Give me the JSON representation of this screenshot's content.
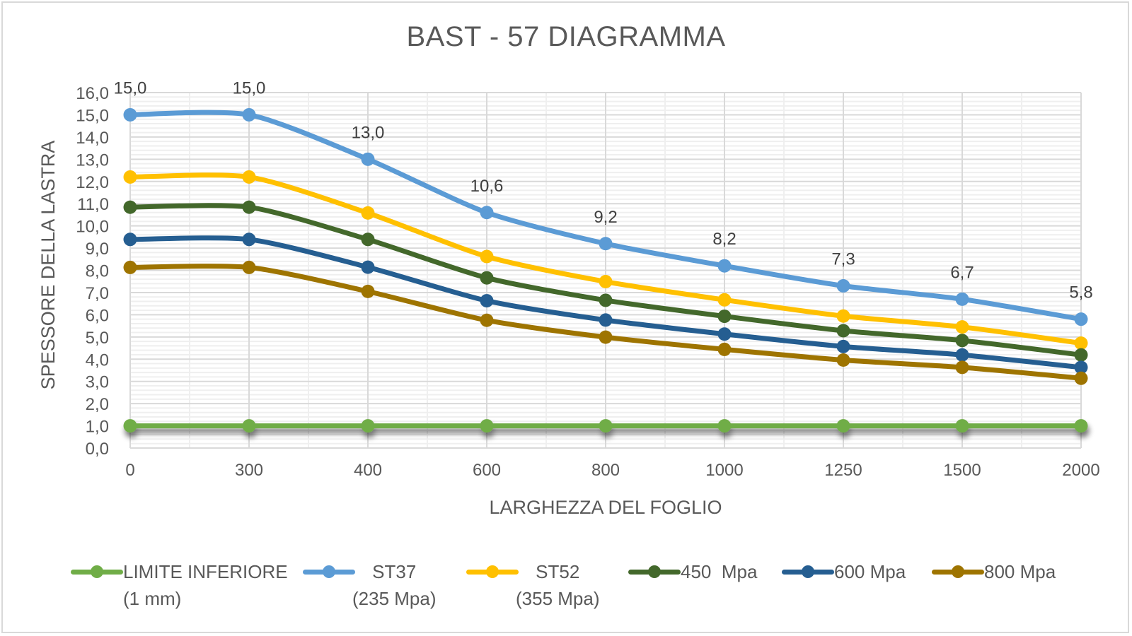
{
  "chart_data": {
    "type": "line",
    "title": "BAST - 57 DIAGRAMMA",
    "xlabel": "LARGHEZZA DEL FOGLIO",
    "ylabel": "SPESSORE DELLA LASTRA",
    "categories": [
      "0",
      "300",
      "400",
      "600",
      "800",
      "1000",
      "1250",
      "1500",
      "2000"
    ],
    "ylim": [
      0,
      16
    ],
    "y_major_step": 1,
    "y_minor_step": 0.2,
    "y_ticks": [
      "0,0",
      "1,0",
      "2,0",
      "3,0",
      "4,0",
      "5,0",
      "6,0",
      "7,0",
      "8,0",
      "9,0",
      "10,0",
      "11,0",
      "12,0",
      "13,0",
      "14,0",
      "15,0",
      "16,0"
    ],
    "grid": true,
    "legend_position": "bottom",
    "series": [
      {
        "name": "LIMITE INFERIORE\n(1 mm)",
        "color": "#70AD47",
        "shadow": true,
        "values": [
          1.0,
          1.0,
          1.0,
          1.0,
          1.0,
          1.0,
          1.0,
          1.0,
          1.0
        ],
        "show_labels": false
      },
      {
        "name": "ST37\n(235 Mpa)",
        "color": "#5B9BD5",
        "values": [
          15.0,
          15.0,
          13.0,
          10.6,
          9.2,
          8.2,
          7.3,
          6.7,
          5.8
        ],
        "show_labels": true,
        "labels": [
          "15,0",
          "15,0",
          "13,0",
          "10,6",
          "9,2",
          "8,2",
          "7,3",
          "6,7",
          "5,8"
        ]
      },
      {
        "name": "ST52\n(355 Mpa)",
        "color": "#FFC000",
        "values": [
          12.2,
          12.2,
          10.58,
          8.62,
          7.49,
          6.67,
          5.94,
          5.45,
          4.72
        ],
        "show_labels": false
      },
      {
        "name": "450  Mpa",
        "color": "#43682B",
        "values": [
          10.84,
          10.84,
          9.39,
          7.66,
          6.65,
          5.93,
          5.28,
          4.84,
          4.19
        ],
        "show_labels": false
      },
      {
        "name": "600 Mpa",
        "color": "#255E91",
        "values": [
          9.39,
          9.39,
          8.14,
          6.63,
          5.76,
          5.13,
          4.57,
          4.19,
          3.63
        ],
        "show_labels": false
      },
      {
        "name": "800 Mpa",
        "color": "#9E7400",
        "values": [
          8.13,
          8.13,
          7.05,
          5.75,
          4.99,
          4.44,
          3.96,
          3.63,
          3.14
        ],
        "show_labels": false
      }
    ]
  },
  "legend": [
    {
      "line1": "LIMITE INFERIORE",
      "line2": "(1 mm)",
      "color": "#70AD47",
      "align": "left"
    },
    {
      "line1": "ST37",
      "line2": "(235 Mpa)",
      "color": "#5B9BD5",
      "align": "center"
    },
    {
      "line1": "ST52",
      "line2": "(355 Mpa)",
      "color": "#FFC000",
      "align": "center"
    },
    {
      "line1": "450  Mpa",
      "line2": "",
      "color": "#43682B",
      "align": "left"
    },
    {
      "line1": "600 Mpa",
      "line2": "",
      "color": "#255E91",
      "align": "left"
    },
    {
      "line1": "800 Mpa",
      "line2": "",
      "color": "#9E7400",
      "align": "left"
    }
  ]
}
